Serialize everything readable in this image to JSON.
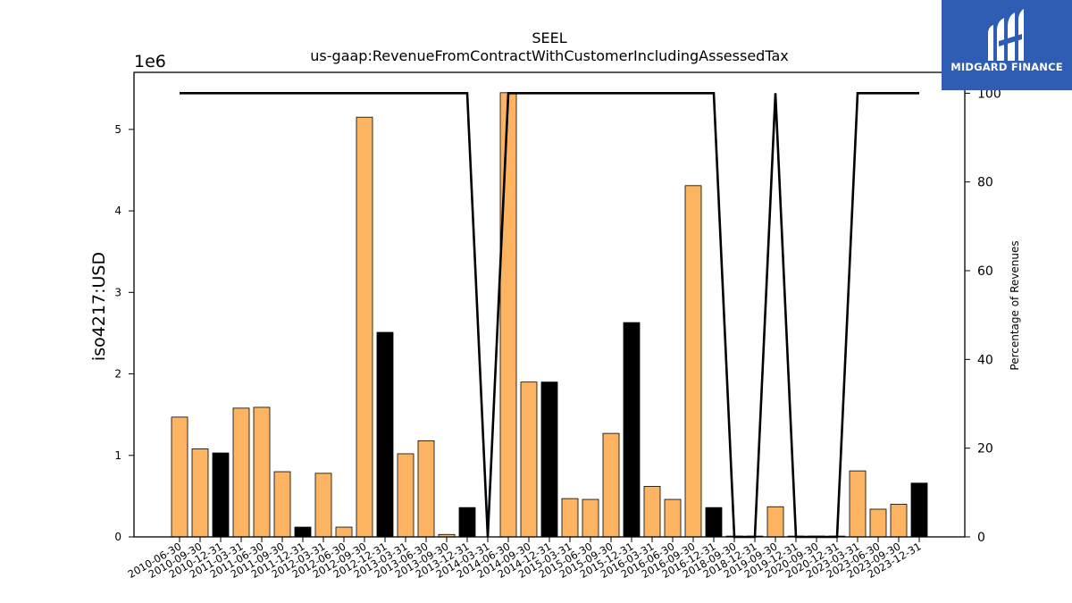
{
  "chart_data": {
    "type": "bar",
    "title": "SEEL",
    "subtitle": "us-gaap:RevenueFromContractWithCustomerIncludingAssessedTax",
    "ylabel": "iso4217:USD",
    "y_multiplier": "1e6",
    "y2label": "Percentage of Revenues",
    "ylim": [
      0,
      5.7
    ],
    "y2lim": [
      0,
      104.7
    ],
    "yticks": [
      0,
      1,
      2,
      3,
      4,
      5
    ],
    "y2ticks": [
      0,
      20,
      40,
      60,
      80,
      100
    ],
    "grid": false,
    "categories": [
      "2010-06-30",
      "2010-09-30",
      "2010-12-31",
      "2011-03-31",
      "2011-06-30",
      "2011-09-30",
      "2011-12-31",
      "2012-03-31",
      "2012-06-30",
      "2012-09-30",
      "2012-12-31",
      "2013-03-31",
      "2013-06-30",
      "2013-09-30",
      "2013-12-31",
      "2014-03-31",
      "2014-06-30",
      "2014-09-30",
      "2014-12-31",
      "2015-03-31",
      "2015-06-30",
      "2015-09-30",
      "2015-12-31",
      "2016-03-31",
      "2016-06-30",
      "2016-09-30",
      "2016-12-31",
      "2018-09-30",
      "2018-12-31",
      "2019-09-30",
      "2019-12-31",
      "2020-09-30",
      "2020-12-31",
      "2023-03-31",
      "2023-06-30",
      "2023-09-30",
      "2023-12-31"
    ],
    "values": [
      1.47,
      1.08,
      1.03,
      1.58,
      1.59,
      0.8,
      0.12,
      0.78,
      0.12,
      5.15,
      2.51,
      1.02,
      1.18,
      0.03,
      0.36,
      0.0,
      5.45,
      1.9,
      1.9,
      0.47,
      0.46,
      1.27,
      2.63,
      0.62,
      0.46,
      4.31,
      0.36,
      0.01,
      0.01,
      0.37,
      0.01,
      0.01,
      0.01,
      0.81,
      0.34,
      0.4,
      0.66
    ],
    "bar_colors": [
      "#fdb462",
      "#fdb462",
      "#000000",
      "#fdb462",
      "#fdb462",
      "#fdb462",
      "#000000",
      "#fdb462",
      "#fdb462",
      "#fdb462",
      "#000000",
      "#fdb462",
      "#fdb462",
      "#fdb462",
      "#000000",
      "#fdb462",
      "#fdb462",
      "#fdb462",
      "#000000",
      "#fdb462",
      "#fdb462",
      "#fdb462",
      "#000000",
      "#fdb462",
      "#fdb462",
      "#fdb462",
      "#000000",
      "#fdb462",
      "#fdb462",
      "#fdb462",
      "#000000",
      "#fdb462",
      "#fdb462",
      "#fdb462",
      "#fdb462",
      "#fdb462",
      "#000000"
    ],
    "percentage_line": [
      100,
      100,
      100,
      100,
      100,
      100,
      100,
      100,
      100,
      100,
      100,
      100,
      100,
      100,
      100,
      0,
      100,
      100,
      100,
      100,
      100,
      100,
      100,
      100,
      100,
      100,
      100,
      0,
      0,
      100,
      0,
      0,
      0,
      100,
      100,
      100,
      100
    ],
    "line_color": "#000000"
  },
  "logo": {
    "text": "MIDGARD FINANCE",
    "background": "#2f5db3"
  }
}
